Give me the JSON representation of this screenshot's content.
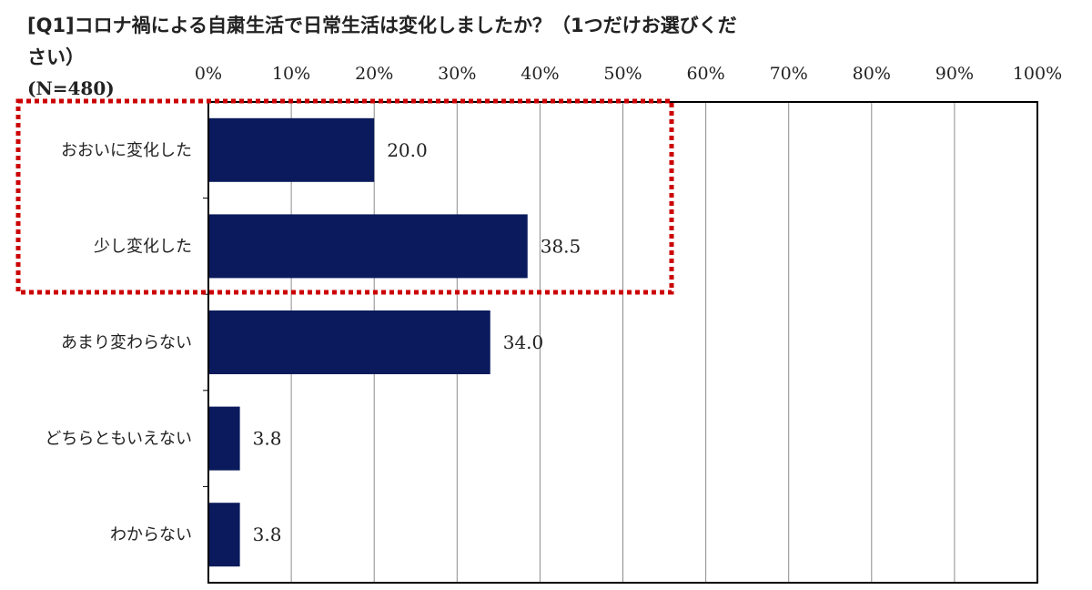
{
  "question": {
    "title_line1": "[Q1]コロナ禍による自粛生活で日常生活は変化しましたか？（1つだけお選びくだ",
    "title_line2": "さい）",
    "sample_size": "(N=480)"
  },
  "chart_data": {
    "type": "bar",
    "orientation": "horizontal",
    "categories": [
      "おおいに変化した",
      "少し変化した",
      "あまり変わらない",
      "どちらともいえない",
      "わからない"
    ],
    "values": [
      20.0,
      38.5,
      34.0,
      3.8,
      3.8
    ],
    "value_labels": [
      "20.0",
      "38.5",
      "34.0",
      "3.8",
      "3.8"
    ],
    "xlim": [
      0,
      100
    ],
    "x_ticks": [
      "0%",
      "10%",
      "20%",
      "30%",
      "40%",
      "50%",
      "60%",
      "70%",
      "80%",
      "90%",
      "100%"
    ],
    "x_axis_position": "top",
    "grid": true,
    "bar_color": "#0a1a5c",
    "highlight": {
      "categories": [
        "おおいに変化した",
        "少し変化した"
      ],
      "style": "dotted",
      "color": "#cc0000"
    }
  }
}
